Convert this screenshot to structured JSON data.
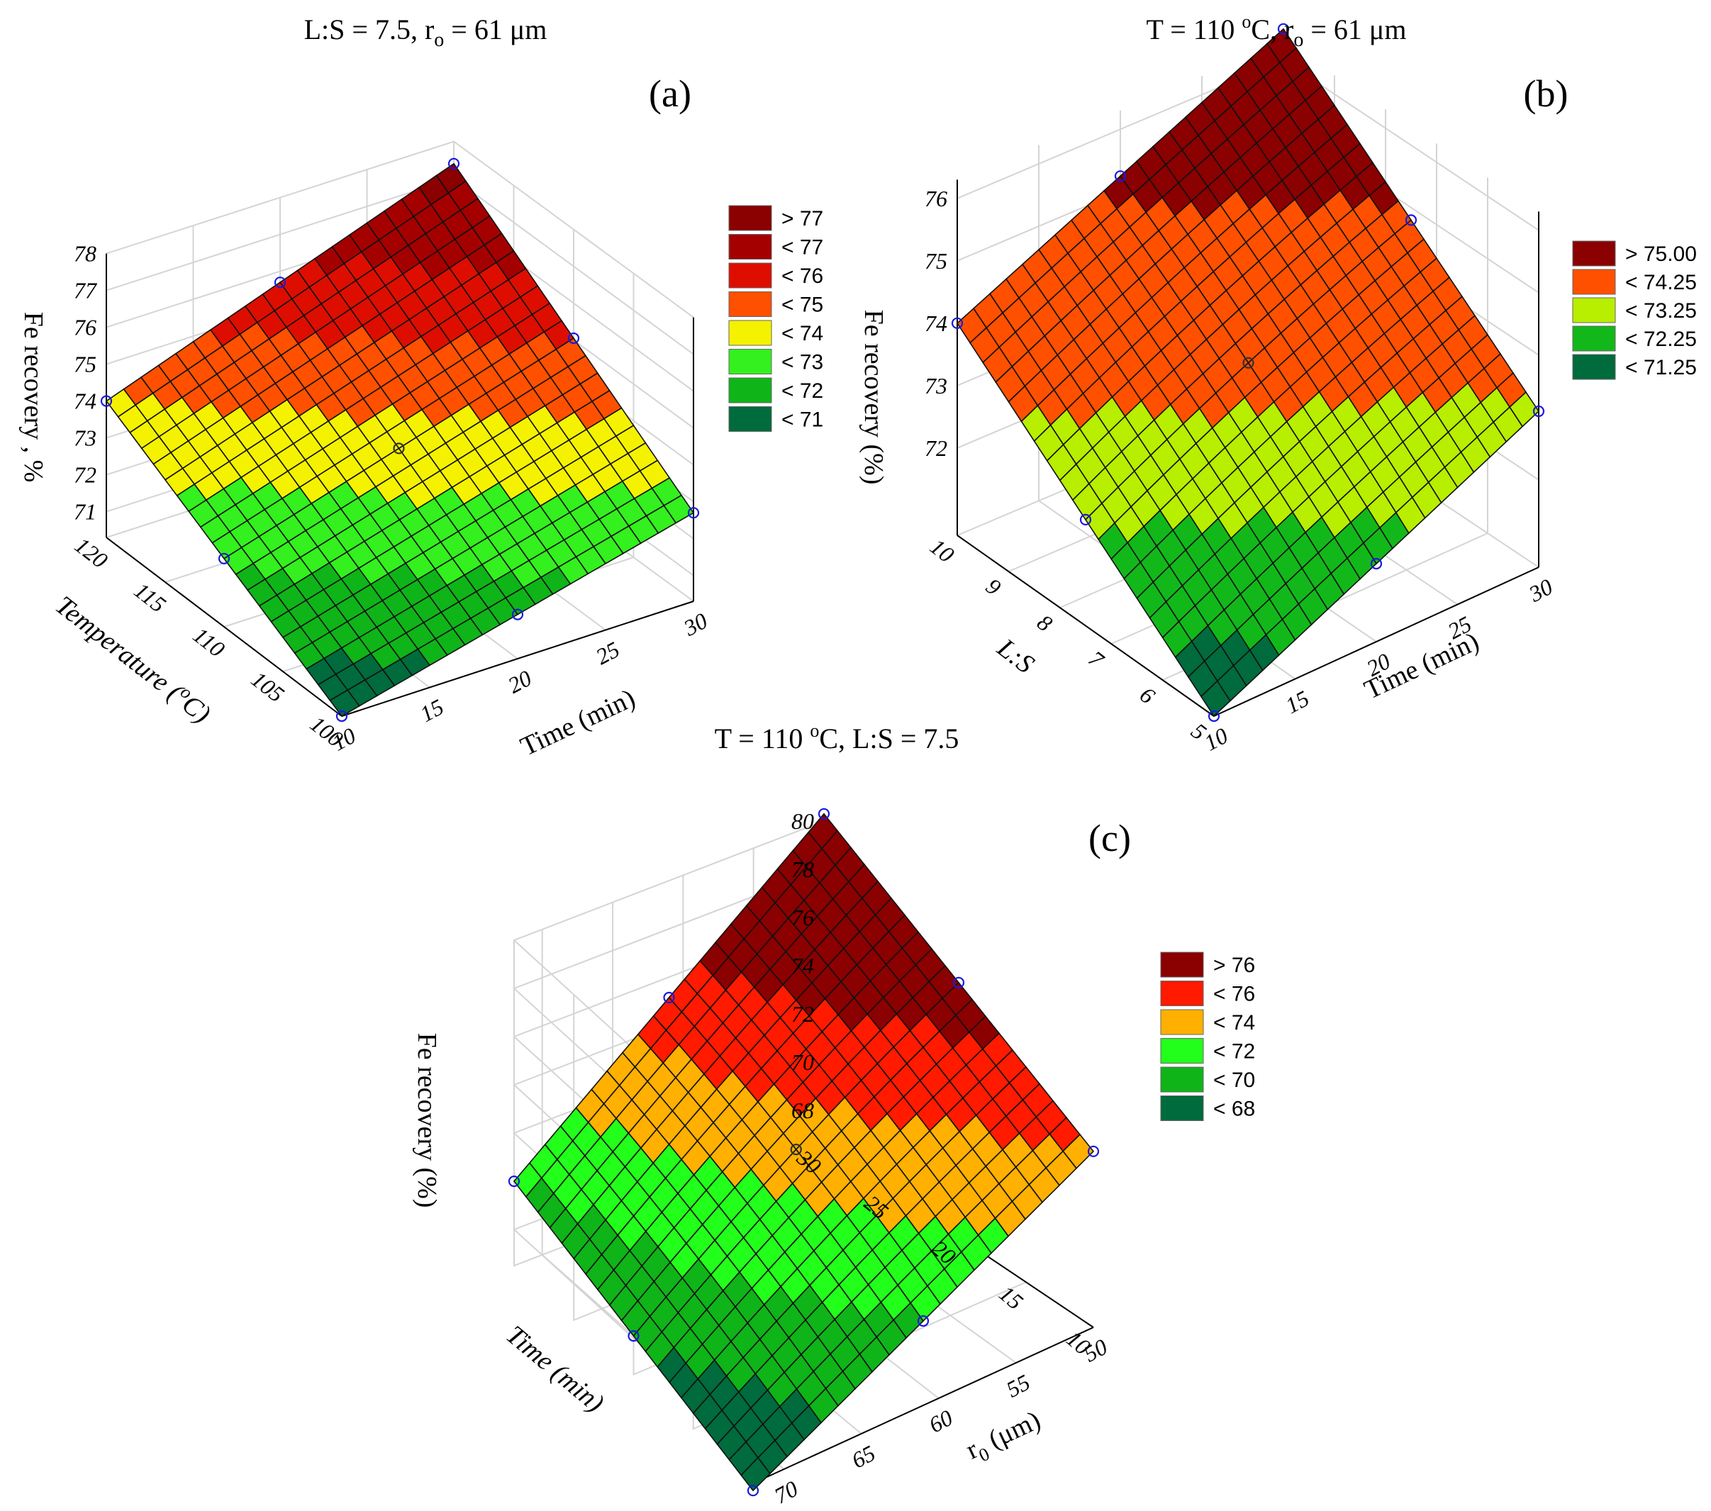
{
  "figure": {
    "description_panels": [
      "a",
      "b",
      "c"
    ]
  },
  "chart_data": [
    {
      "type": "surface",
      "panel_label": "(a)",
      "title": "L:S = 7.5, r<sub>o</sub> = 61 μm",
      "title_main": "L:S = 7.5, r",
      "title_sub": "o",
      "title_tail": " = 61 μm",
      "xlabel": "Time (min)",
      "ylabel": "Temperature (°C)",
      "ylabel_main": "Temperature (",
      "ylabel_sup": "o",
      "ylabel_tail": "C)",
      "zlabel": "Fe recovery , %",
      "x_ticks": [
        "10",
        "15",
        "20",
        "25",
        "30"
      ],
      "y_ticks": [
        "100",
        "105",
        "110",
        "115",
        "120"
      ],
      "z_ticks": [
        "71",
        "72",
        "73",
        "74",
        "75",
        "76",
        "77",
        "78"
      ],
      "x_range": [
        10,
        30
      ],
      "y_range": [
        100,
        120
      ],
      "z_range": [
        70.3,
        78
      ],
      "corner_values": {
        "xmin_ymin": 70.3,
        "xmax_ymin": 72.7,
        "xmin_ymax": 74.0,
        "xmax_ymax": 77.4
      },
      "center_value": 73.6,
      "design_points": [
        [
          10,
          100
        ],
        [
          30,
          100
        ],
        [
          10,
          120
        ],
        [
          30,
          120
        ],
        [
          20,
          100
        ],
        [
          10,
          110
        ],
        [
          30,
          110
        ],
        [
          20,
          120
        ],
        [
          20,
          110
        ]
      ],
      "legend": [
        {
          "label": "> 77",
          "color": "#8b0000"
        },
        {
          "label": "< 77",
          "color": "#a50000"
        },
        {
          "label": "< 76",
          "color": "#dd0e00"
        },
        {
          "label": "< 75",
          "color": "#ff5000"
        },
        {
          "label": "< 74",
          "color": "#f5f200"
        },
        {
          "label": "< 73",
          "color": "#33f01e"
        },
        {
          "label": "< 72",
          "color": "#0fb418"
        },
        {
          "label": "< 71",
          "color": "#006b3c"
        }
      ]
    },
    {
      "type": "surface",
      "panel_label": "(b)",
      "title_main": "T = 110 ",
      "title_sup": "o",
      "title_tail": "C, r",
      "title_sub": "o",
      "title_tail2": " = 61 μm",
      "xlabel": "Time (min)",
      "ylabel": "L:S",
      "zlabel": "Fe recovery (%)",
      "x_ticks": [
        "10",
        "15",
        "20",
        "25",
        "30"
      ],
      "y_ticks": [
        "5",
        "6",
        "7",
        "8",
        "9",
        "10"
      ],
      "z_ticks": [
        "72",
        "73",
        "74",
        "75",
        "76"
      ],
      "x_range": [
        10,
        30
      ],
      "y_range": [
        5,
        10
      ],
      "z_range": [
        70.6,
        76.3
      ],
      "corner_values": {
        "xmin_ymin": 70.6,
        "xmax_ymin": 73.1,
        "xmin_ymax": 74.0,
        "xmax_ymax": 76.5
      },
      "center_value": 74.0,
      "design_points": [
        [
          10,
          5
        ],
        [
          30,
          5
        ],
        [
          10,
          10
        ],
        [
          30,
          10
        ],
        [
          20,
          5
        ],
        [
          10,
          7.5
        ],
        [
          30,
          7.5
        ],
        [
          20,
          10
        ],
        [
          20,
          7.5
        ]
      ],
      "legend": [
        {
          "label": "> 75.00",
          "color": "#8b0000"
        },
        {
          "label": "< 74.25",
          "color": "#ff5000"
        },
        {
          "label": "< 73.25",
          "color": "#b8ee00"
        },
        {
          "label": "< 72.25",
          "color": "#12b81a"
        },
        {
          "label": "< 71.25",
          "color": "#006b3c"
        }
      ]
    },
    {
      "type": "surface",
      "panel_label": "(c)",
      "title_main": "T = 110 ",
      "title_sup": "o",
      "title_tail": "C, L:S = 7.5",
      "xlabel": "r₀ (μm)",
      "xlabel_main": "r",
      "xlabel_sub": "0",
      "xlabel_tail": " (μm)",
      "ylabel": "Time (min)",
      "zlabel": "Fe recovery (%)",
      "x_ticks": [
        "50",
        "55",
        "60",
        "65",
        "70"
      ],
      "y_ticks": [
        "10",
        "15",
        "20",
        "25",
        "30"
      ],
      "z_ticks": [
        "68",
        "70",
        "72",
        "74",
        "76",
        "78",
        "80"
      ],
      "x_range": [
        50,
        72
      ],
      "y_range": [
        10,
        30
      ],
      "z_range": [
        66.5,
        80
      ],
      "corner_values": {
        "xmin_ymin": 73.8,
        "xmax_ymin": 66.2,
        "xmin_ymax": 80.3,
        "xmax_ymax": 70.0
      },
      "center_value": 74.2,
      "design_points": [
        [
          72,
          10
        ],
        [
          50,
          10
        ],
        [
          72,
          30
        ],
        [
          50,
          30
        ],
        [
          61,
          10
        ],
        [
          72,
          20
        ],
        [
          50,
          20
        ],
        [
          61,
          30
        ],
        [
          61,
          20
        ]
      ],
      "legend": [
        {
          "label": "> 76",
          "color": "#8b0000"
        },
        {
          "label": "< 76",
          "color": "#ff1a00"
        },
        {
          "label": "< 74",
          "color": "#ffb000"
        },
        {
          "label": "< 72",
          "color": "#22ff1a"
        },
        {
          "label": "< 70",
          "color": "#0fb418"
        },
        {
          "label": "< 68",
          "color": "#006b3c"
        }
      ]
    }
  ]
}
